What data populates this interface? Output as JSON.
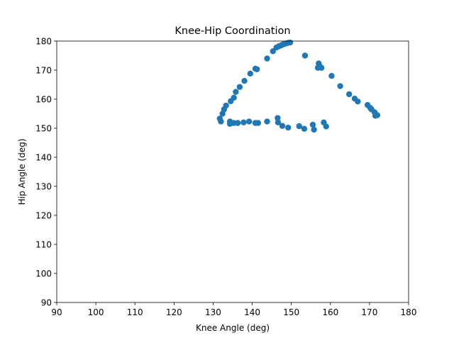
{
  "chart_data": {
    "type": "scatter",
    "title": "Knee-Hip Coordination",
    "xlabel": "Knee Angle (deg)",
    "ylabel": "Hip Angle (deg)",
    "xlim": [
      90,
      180
    ],
    "ylim": [
      90,
      180
    ],
    "xticks": [
      90,
      100,
      110,
      120,
      130,
      140,
      150,
      160,
      170,
      180
    ],
    "yticks": [
      90,
      100,
      110,
      120,
      130,
      140,
      150,
      160,
      170,
      180
    ],
    "grid": false,
    "marker_color": "#1f77b4",
    "series": [
      {
        "points": [
          [
            131.7,
            153.3
          ],
          [
            132.0,
            152.3
          ],
          [
            132.4,
            155.0
          ],
          [
            132.8,
            156.5
          ],
          [
            133.3,
            157.8
          ],
          [
            134.5,
            159.3
          ],
          [
            135.3,
            160.5
          ],
          [
            135.8,
            162.5
          ],
          [
            136.8,
            164.2
          ],
          [
            138.0,
            166.3
          ],
          [
            139.5,
            168.8
          ],
          [
            140.8,
            170.5
          ],
          [
            141.2,
            170.3
          ],
          [
            143.8,
            174.0
          ],
          [
            145.3,
            176.5
          ],
          [
            146.2,
            177.8
          ],
          [
            146.8,
            178.2
          ],
          [
            147.3,
            178.5
          ],
          [
            147.8,
            178.8
          ],
          [
            148.2,
            179.0
          ],
          [
            148.7,
            179.2
          ],
          [
            149.2,
            179.4
          ],
          [
            149.7,
            179.5
          ],
          [
            153.5,
            175.0
          ],
          [
            157.0,
            172.3
          ],
          [
            157.2,
            171.5
          ],
          [
            156.8,
            170.8
          ],
          [
            157.7,
            170.8
          ],
          [
            160.3,
            168.0
          ],
          [
            162.5,
            164.5
          ],
          [
            164.8,
            161.7
          ],
          [
            166.2,
            160.2
          ],
          [
            167.0,
            159.2
          ],
          [
            169.5,
            158.0
          ],
          [
            170.2,
            157.0
          ],
          [
            170.5,
            156.5
          ],
          [
            171.3,
            155.5
          ],
          [
            171.5,
            154.3
          ],
          [
            172.0,
            154.5
          ],
          [
            134.3,
            152.3
          ],
          [
            134.3,
            151.5
          ],
          [
            135.3,
            151.8
          ],
          [
            136.3,
            151.8
          ],
          [
            137.8,
            152.0
          ],
          [
            139.2,
            152.3
          ],
          [
            140.8,
            151.8
          ],
          [
            141.5,
            151.8
          ],
          [
            143.8,
            152.3
          ],
          [
            146.5,
            153.5
          ],
          [
            146.6,
            152.0
          ],
          [
            147.7,
            150.8
          ],
          [
            149.2,
            150.2
          ],
          [
            152.0,
            150.7
          ],
          [
            153.3,
            149.8
          ],
          [
            155.5,
            151.2
          ],
          [
            155.8,
            149.5
          ],
          [
            158.3,
            152.0
          ],
          [
            158.9,
            150.6
          ]
        ]
      }
    ]
  }
}
